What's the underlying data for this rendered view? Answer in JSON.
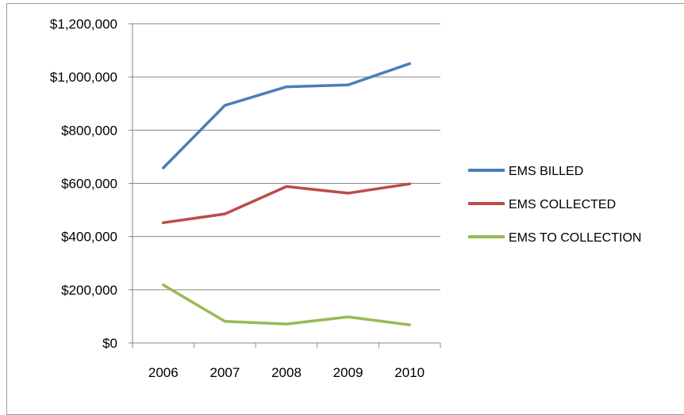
{
  "chart_data": {
    "type": "line",
    "categories": [
      "2006",
      "2007",
      "2008",
      "2009",
      "2010"
    ],
    "yticks": [
      "$0",
      "$200,000",
      "$400,000",
      "$600,000",
      "$800,000",
      "$1,000,000",
      "$1,200,000"
    ],
    "ylim": [
      0,
      1200000
    ],
    "grid": true,
    "legend_position": "right",
    "series": [
      {
        "name": "EMS BILLED",
        "color": "#4a7ebb",
        "values": [
          658000,
          893000,
          963000,
          970000,
          1050000
        ]
      },
      {
        "name": "EMS COLLECTED",
        "color": "#be4b48",
        "values": [
          452000,
          485000,
          588000,
          563000,
          598000
        ]
      },
      {
        "name": "EMS TO COLLECTION",
        "color": "#98b954",
        "values": [
          218000,
          81000,
          71000,
          98000,
          68000
        ]
      }
    ]
  }
}
